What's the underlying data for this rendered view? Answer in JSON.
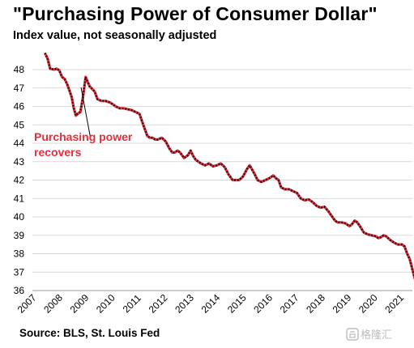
{
  "chart_data": {
    "type": "line",
    "title": "\"Purchasing  Power  of  Consumer  Dollar\"",
    "subtitle": "Index value, not seasonally adjusted",
    "source": "Source: BLS, St. Louis Fed",
    "annotation": [
      "Purchasing power",
      "recovers"
    ],
    "ylim": [
      36,
      49
    ],
    "yticks": [
      36,
      37,
      38,
      39,
      40,
      41,
      42,
      43,
      44,
      45,
      46,
      47,
      48
    ],
    "xlim": [
      2007.6,
      2021.7
    ],
    "xticks": [
      "2007",
      "2008",
      "2009",
      "2010",
      "2011",
      "2012",
      "2013",
      "2014",
      "2015",
      "2016",
      "2017",
      "2018",
      "2019",
      "2020",
      "2021"
    ],
    "series": [
      {
        "color": "#e0303c",
        "x": [
          2007.6,
          2007.7,
          2007.8,
          2007.95,
          2008.05,
          2008.15,
          2008.25,
          2008.35,
          2008.45,
          2008.55,
          2008.62,
          2008.7,
          2008.78,
          2008.85,
          2008.95,
          2009.05,
          2009.15,
          2009.3,
          2009.4,
          2009.5,
          2009.6,
          2009.75,
          2009.9,
          2010.1,
          2010.3,
          2010.45,
          2010.6,
          2010.75,
          2010.9,
          2011.05,
          2011.2,
          2011.35,
          2011.5,
          2011.6,
          2011.7,
          2011.8,
          2011.9,
          2012.05,
          2012.2,
          2012.35,
          2012.45,
          2012.55,
          2012.65,
          2012.75,
          2012.9,
          2013.05,
          2013.15,
          2013.25,
          2013.35,
          2013.45,
          2013.55,
          2013.7,
          2013.85,
          2014.0,
          2014.15,
          2014.3,
          2014.45,
          2014.6,
          2014.75,
          2014.85,
          2015.0,
          2015.15,
          2015.3,
          2015.4,
          2015.5,
          2015.6,
          2015.7,
          2015.85,
          2016.0,
          2016.15,
          2016.3,
          2016.4,
          2016.5,
          2016.6,
          2016.75,
          2016.9,
          2017.05,
          2017.2,
          2017.35,
          2017.5,
          2017.65,
          2017.8,
          2017.95,
          2018.1,
          2018.25,
          2018.4,
          2018.55,
          2018.65,
          2018.75,
          2018.9,
          2019.05,
          2019.2,
          2019.3,
          2019.4,
          2019.5,
          2019.6,
          2019.75,
          2019.9,
          2020.05,
          2020.2,
          2020.3,
          2020.4,
          2020.5,
          2020.6,
          2020.75,
          2020.9,
          2021.05,
          2021.2,
          2021.3,
          2021.4,
          2021.5,
          2021.6,
          2021.7
        ],
        "values": [
          48.9,
          48.6,
          48.05,
          48.0,
          48.05,
          47.95,
          47.6,
          47.5,
          47.2,
          46.8,
          46.5,
          45.9,
          45.5,
          45.6,
          45.7,
          46.5,
          47.6,
          47.1,
          46.95,
          46.8,
          46.4,
          46.3,
          46.3,
          46.2,
          46.0,
          45.9,
          45.9,
          45.85,
          45.8,
          45.7,
          45.6,
          45.0,
          44.4,
          44.3,
          44.3,
          44.2,
          44.2,
          44.3,
          44.1,
          43.7,
          43.5,
          43.5,
          43.6,
          43.5,
          43.2,
          43.35,
          43.6,
          43.3,
          43.1,
          43.0,
          42.9,
          42.8,
          42.9,
          42.75,
          42.8,
          42.9,
          42.7,
          42.3,
          42.0,
          42.0,
          42.0,
          42.2,
          42.6,
          42.8,
          42.55,
          42.3,
          42.0,
          41.9,
          42.0,
          42.1,
          42.25,
          42.1,
          42.0,
          41.6,
          41.5,
          41.5,
          41.4,
          41.3,
          41.0,
          40.9,
          40.95,
          40.8,
          40.6,
          40.5,
          40.55,
          40.3,
          40.0,
          39.8,
          39.7,
          39.7,
          39.65,
          39.5,
          39.6,
          39.8,
          39.7,
          39.5,
          39.15,
          39.05,
          39.0,
          38.95,
          38.85,
          38.9,
          39.0,
          38.95,
          38.75,
          38.6,
          38.5,
          38.5,
          38.4,
          38.0,
          37.7,
          37.15,
          36.6
        ]
      }
    ]
  },
  "watermark": {
    "text": "格隆汇"
  }
}
